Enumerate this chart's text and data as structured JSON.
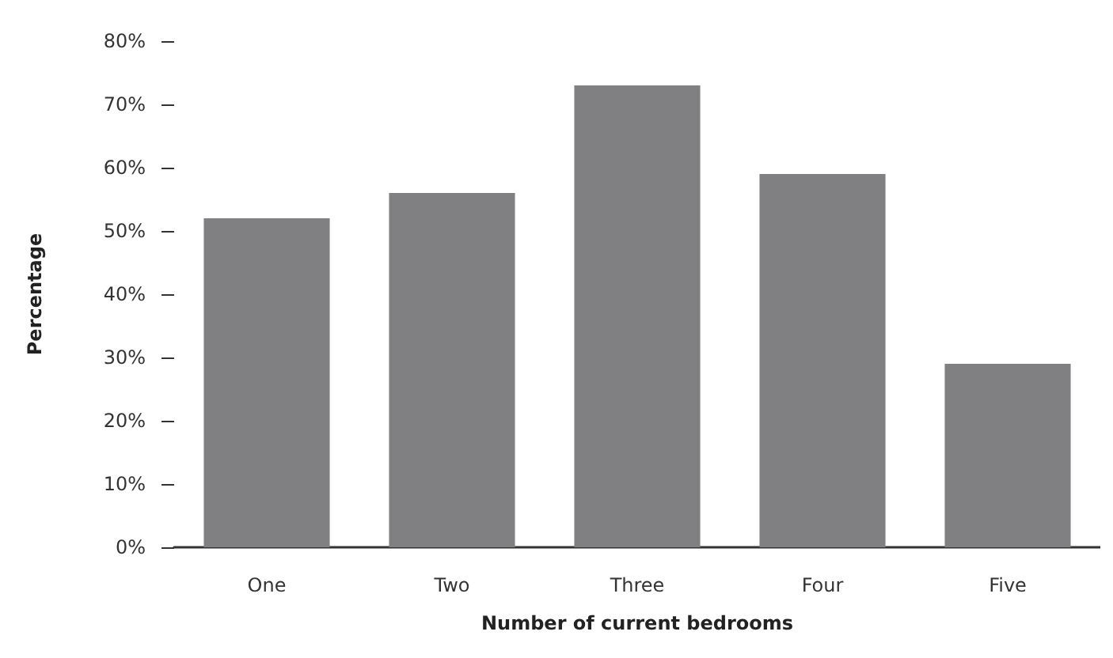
{
  "chart_data": {
    "type": "bar",
    "xlabel": "Number of current bedrooms",
    "ylabel": "Percentage",
    "categories": [
      "One",
      "Two",
      "Three",
      "Four",
      "Five"
    ],
    "values": [
      52,
      56,
      73,
      59,
      29
    ],
    "color": "#808083",
    "ylim": [
      0,
      80
    ],
    "yticks": [
      {
        "value": 0,
        "label": "0%"
      },
      {
        "value": 10,
        "label": "10%"
      },
      {
        "value": 20,
        "label": "20%"
      },
      {
        "value": 30,
        "label": "30%"
      },
      {
        "value": 40,
        "label": "40%"
      },
      {
        "value": 50,
        "label": "50%"
      },
      {
        "value": 60,
        "label": "60%"
      },
      {
        "value": 70,
        "label": "70%"
      },
      {
        "value": 80,
        "label": "80%"
      }
    ],
    "grid": false
  }
}
